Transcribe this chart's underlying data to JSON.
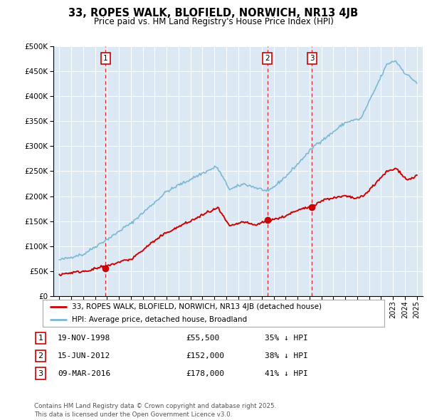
{
  "title": "33, ROPES WALK, BLOFIELD, NORWICH, NR13 4JB",
  "subtitle": "Price paid vs. HM Land Registry's House Price Index (HPI)",
  "legend_line1": "33, ROPES WALK, BLOFIELD, NORWICH, NR13 4JB (detached house)",
  "legend_line2": "HPI: Average price, detached house, Broadland",
  "transactions": [
    {
      "num": 1,
      "date": "19-NOV-1998",
      "price": "£55,500",
      "pct": "35% ↓ HPI",
      "year": 1998.88
    },
    {
      "num": 2,
      "date": "15-JUN-2012",
      "price": "£152,000",
      "pct": "38% ↓ HPI",
      "year": 2012.45
    },
    {
      "num": 3,
      "date": "09-MAR-2016",
      "price": "£178,000",
      "pct": "41% ↓ HPI",
      "year": 2016.19
    }
  ],
  "trans_prices": [
    55500,
    152000,
    178000
  ],
  "trans_years": [
    1998.88,
    2012.45,
    2016.19
  ],
  "footer": "Contains HM Land Registry data © Crown copyright and database right 2025.\nThis data is licensed under the Open Government Licence v3.0.",
  "hpi_color": "#7bb8d4",
  "price_color": "#cc0000",
  "dashed_color": "#cc0000",
  "background_chart": "#dce9f5",
  "ylim": [
    0,
    500000
  ],
  "yticks": [
    0,
    50000,
    100000,
    150000,
    200000,
    250000,
    300000,
    350000,
    400000,
    450000,
    500000
  ],
  "xlim_start": 1994.5,
  "xlim_end": 2025.5
}
